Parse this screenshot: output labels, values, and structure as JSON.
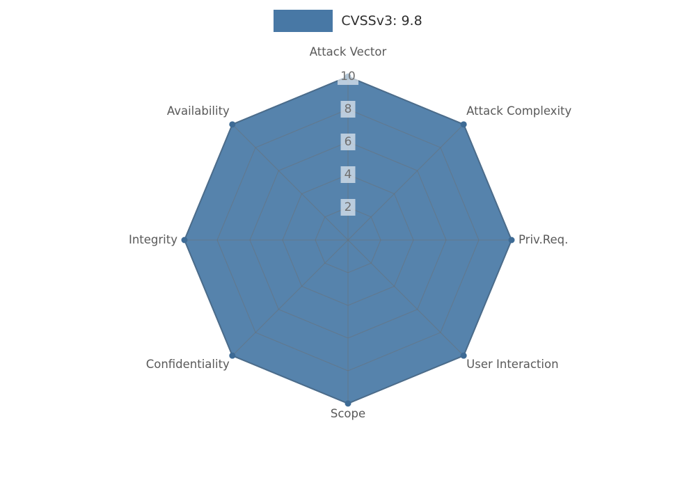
{
  "legend": {
    "label": "CVSSv3: 9.8"
  },
  "chart_data": {
    "type": "radar",
    "title": "",
    "score_label": "CVSSv3: 9.8",
    "score": 9.8,
    "categories": [
      "Attack Vector",
      "Attack Complexity",
      "Priv.Req.",
      "User Interaction",
      "Scope",
      "Confidentiality",
      "Integrity",
      "Availability"
    ],
    "series": [
      {
        "name": "CVSSv3: 9.8",
        "values": [
          10,
          10,
          10,
          10,
          10,
          10,
          10,
          10
        ]
      }
    ],
    "radial_ticks": [
      2,
      4,
      6,
      8,
      10
    ],
    "range": [
      0,
      10
    ],
    "grid": true,
    "legend_position": "top-center",
    "colors": {
      "fill": "#4878a5",
      "fill_edge": "#3e6b95",
      "grid": "#6e6e6e",
      "axis_label": "#595959",
      "tick_label": "#6f6f6f",
      "tick_chip_bg": "rgba(255,255,255,0.6)",
      "legend_text": "#2e2e2e"
    }
  }
}
